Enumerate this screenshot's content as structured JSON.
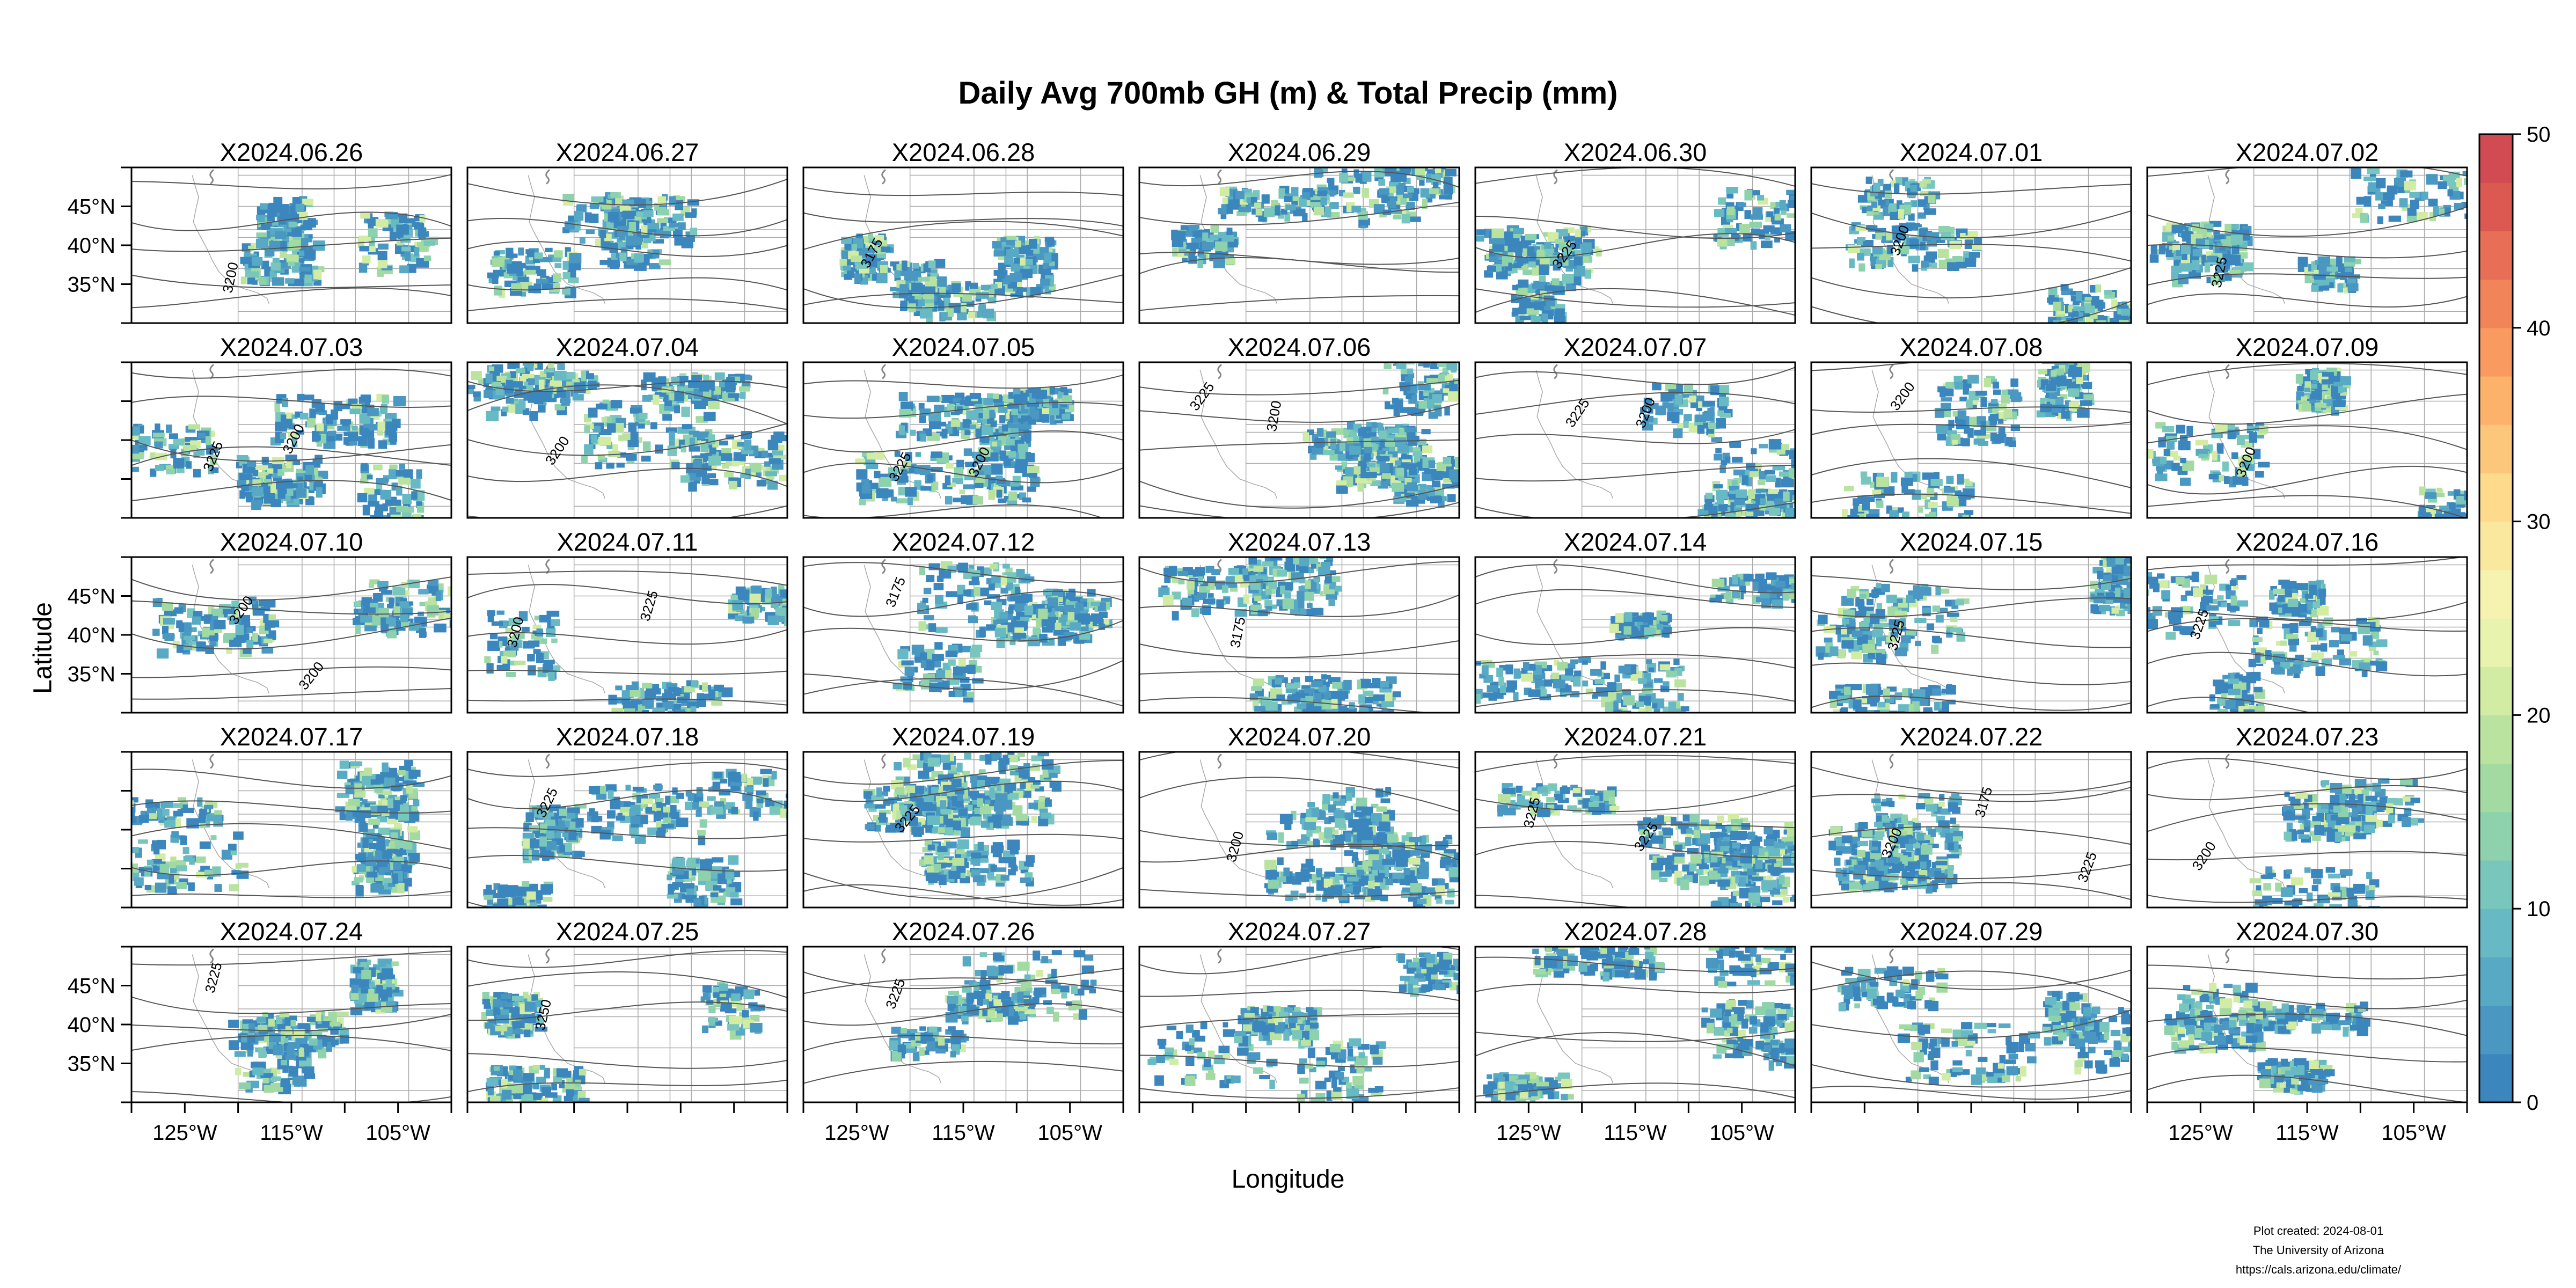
{
  "title": "Daily Avg 700mb GH (m) & Total Precip (mm)",
  "axis": {
    "xlabel": "Longitude",
    "ylabel": "Latitude",
    "lon_ticks": [
      "125°W",
      "115°W",
      "105°W"
    ],
    "lat_ticks": [
      "45°N",
      "40°N",
      "35°N"
    ]
  },
  "colorbar": {
    "range": [
      0,
      50
    ],
    "ticks": [
      "0",
      "10",
      "20",
      "30",
      "40",
      "50"
    ],
    "colors": [
      "#3a86bd",
      "#4a98c2",
      "#58a9c3",
      "#67b9c4",
      "#79c6bc",
      "#8dd1ad",
      "#a3daa2",
      "#bbe3a0",
      "#d2eca4",
      "#e8f4ae",
      "#f6f3b1",
      "#fbe89f",
      "#fdda8c",
      "#fdc77b",
      "#fdb26c",
      "#f99b61",
      "#f2845a",
      "#e86e55",
      "#dc5952",
      "#d24a52"
    ]
  },
  "map": {
    "lon_range": [
      -130,
      -100
    ],
    "lat_range": [
      30,
      50
    ],
    "contour_color": "#555555",
    "border_color": "#aaaaaa"
  },
  "panels": [
    {
      "date": "X2024.06.26",
      "contours": [
        "3200"
      ]
    },
    {
      "date": "X2024.06.27",
      "contours": []
    },
    {
      "date": "X2024.06.28",
      "contours": [
        "3175"
      ]
    },
    {
      "date": "X2024.06.29",
      "contours": []
    },
    {
      "date": "X2024.06.30",
      "contours": [
        "3225"
      ]
    },
    {
      "date": "X2024.07.01",
      "contours": [
        "3200"
      ]
    },
    {
      "date": "X2024.07.02",
      "contours": [
        "3225"
      ]
    },
    {
      "date": "X2024.07.03",
      "contours": [
        "3225",
        "3200"
      ]
    },
    {
      "date": "X2024.07.04",
      "contours": [
        "3200"
      ]
    },
    {
      "date": "X2024.07.05",
      "contours": [
        "3225",
        "3200"
      ]
    },
    {
      "date": "X2024.07.06",
      "contours": [
        "3225",
        "3200"
      ]
    },
    {
      "date": "X2024.07.07",
      "contours": [
        "3225",
        "3200"
      ]
    },
    {
      "date": "X2024.07.08",
      "contours": [
        "3200"
      ]
    },
    {
      "date": "X2024.07.09",
      "contours": [
        "3200"
      ]
    },
    {
      "date": "X2024.07.10",
      "contours": [
        "3200",
        "3200"
      ]
    },
    {
      "date": "X2024.07.11",
      "contours": [
        "3200",
        "3225"
      ]
    },
    {
      "date": "X2024.07.12",
      "contours": [
        "3175"
      ]
    },
    {
      "date": "X2024.07.13",
      "contours": [
        "3175"
      ]
    },
    {
      "date": "X2024.07.14",
      "contours": []
    },
    {
      "date": "X2024.07.15",
      "contours": [
        "3225"
      ]
    },
    {
      "date": "X2024.07.16",
      "contours": [
        "3225"
      ]
    },
    {
      "date": "X2024.07.17",
      "contours": []
    },
    {
      "date": "X2024.07.18",
      "contours": [
        "3225"
      ]
    },
    {
      "date": "X2024.07.19",
      "contours": [
        "3225"
      ]
    },
    {
      "date": "X2024.07.20",
      "contours": [
        "3200"
      ]
    },
    {
      "date": "X2024.07.21",
      "contours": [
        "3225",
        "3225"
      ]
    },
    {
      "date": "X2024.07.22",
      "contours": [
        "3200",
        "3175",
        "3225"
      ]
    },
    {
      "date": "X2024.07.23",
      "contours": [
        "3200"
      ]
    },
    {
      "date": "X2024.07.24",
      "contours": [
        "3225"
      ]
    },
    {
      "date": "X2024.07.25",
      "contours": [
        "3250"
      ]
    },
    {
      "date": "X2024.07.26",
      "contours": [
        "3225"
      ]
    },
    {
      "date": "X2024.07.27",
      "contours": []
    },
    {
      "date": "X2024.07.28",
      "contours": []
    },
    {
      "date": "X2024.07.29",
      "contours": []
    },
    {
      "date": "X2024.07.30",
      "contours": []
    }
  ],
  "credits": {
    "created": "Plot created: 2024-08-01",
    "org": "The University of Arizona",
    "url": "https://cals.arizona.edu/climate/"
  }
}
